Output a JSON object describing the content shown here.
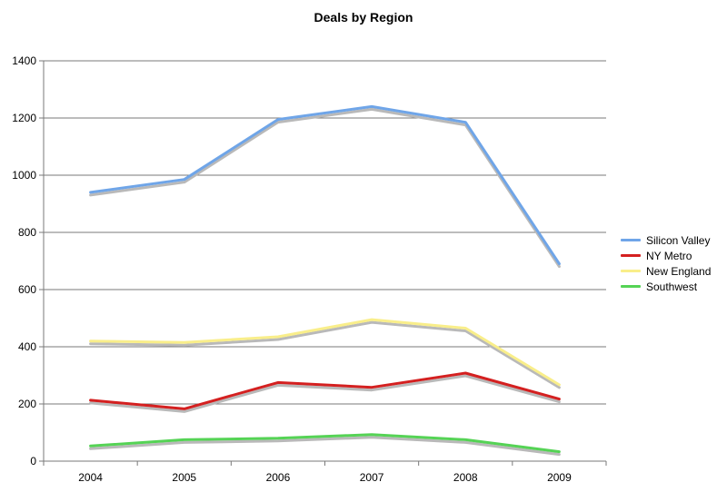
{
  "chart_data": {
    "type": "line",
    "title": "Deals by Region",
    "xlabel": "",
    "ylabel": "",
    "categories": [
      "2004",
      "2005",
      "2006",
      "2007",
      "2008",
      "2009"
    ],
    "ylim": [
      0,
      1400
    ],
    "yticks": [
      0,
      200,
      400,
      600,
      800,
      1000,
      1200,
      1400
    ],
    "grid": true,
    "legend_position": "right",
    "series": [
      {
        "name": "Silicon Valley",
        "color": "#6fa5e8",
        "values": [
          940,
          985,
          1195,
          1240,
          1185,
          690
        ]
      },
      {
        "name": "NY Metro",
        "color": "#d42020",
        "values": [
          213,
          183,
          275,
          258,
          308,
          217
        ]
      },
      {
        "name": "New England",
        "color": "#f9ee8a",
        "values": [
          420,
          415,
          435,
          495,
          465,
          267
        ]
      },
      {
        "name": "Southwest",
        "color": "#55d355",
        "values": [
          53,
          75,
          80,
          93,
          75,
          33
        ]
      }
    ]
  }
}
